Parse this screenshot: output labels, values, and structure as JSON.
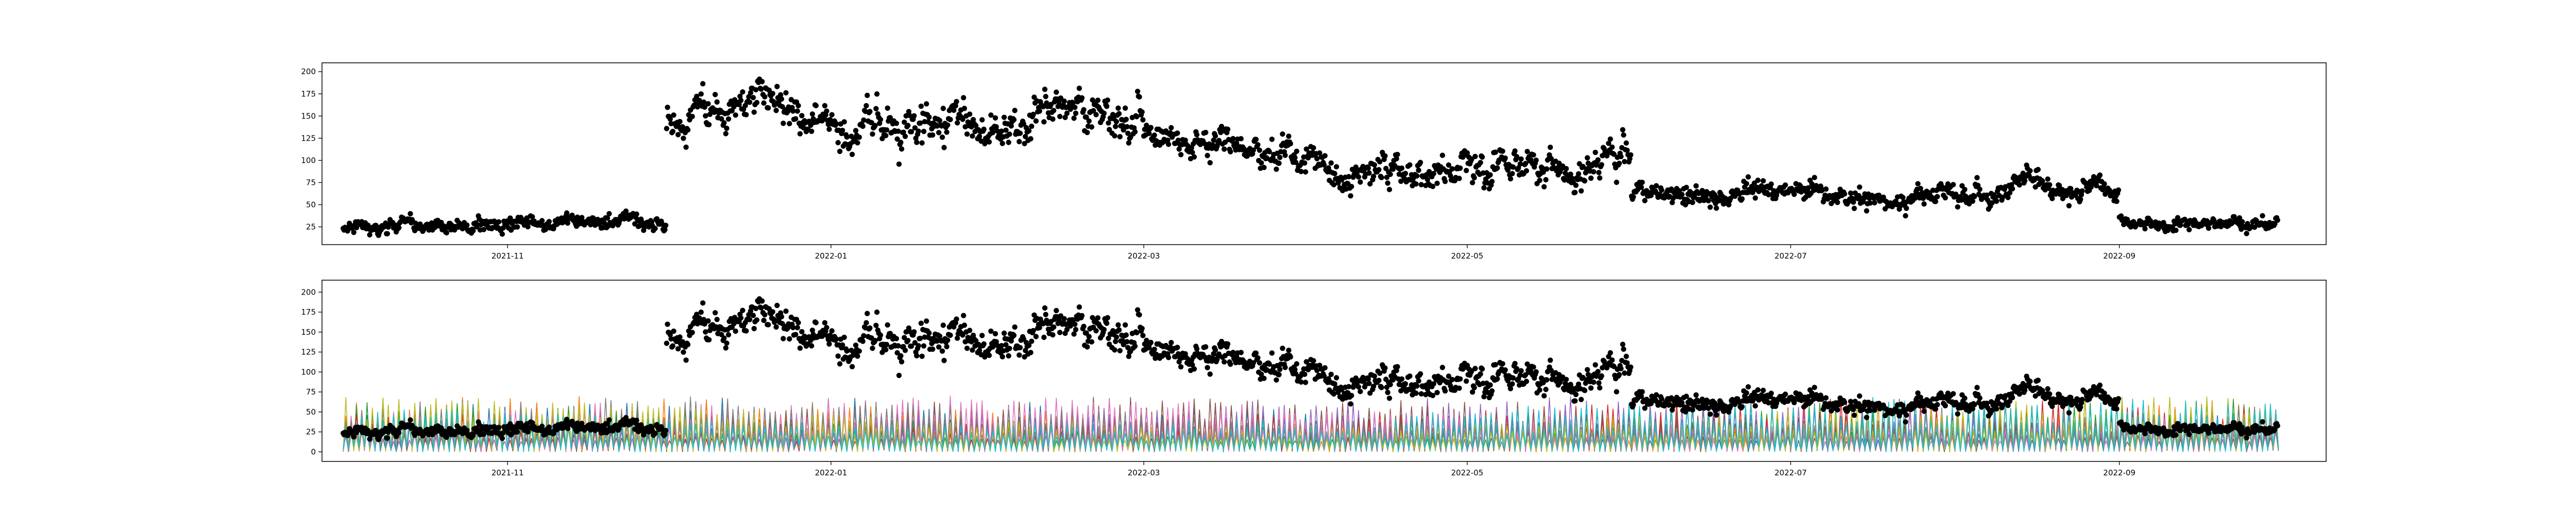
{
  "figure": {
    "background": "#ffffff",
    "marker_color": "#000000",
    "axes_color": "#000000"
  },
  "chart_data": [
    {
      "type": "scatter",
      "title": "",
      "xlabel": "",
      "ylabel": "",
      "xlim": [
        "2021-09-27",
        "2022-10-10"
      ],
      "ylim": [
        5,
        210
      ],
      "x_ticks": [
        "2021-11",
        "2022-01",
        "2022-03",
        "2022-05",
        "2022-07",
        "2022-09"
      ],
      "y_ticks": [
        25,
        50,
        75,
        100,
        125,
        150,
        175,
        200
      ],
      "grid": false,
      "series": [
        {
          "marker": "o",
          "color": "#000000",
          "segments": [
            {
              "start": "2021-10-01",
              "end": "2021-12-01",
              "trend": [
                [
                  0,
                  22
                ],
                [
                  0.5,
                  26
                ],
                [
                  1,
                  32
                ]
              ],
              "noise": 5
            },
            {
              "start": "2021-12-01",
              "end": "2022-03-01",
              "trend": [
                [
                  0,
                  135
                ],
                [
                  0.12,
                  150
                ],
                [
                  0.2,
                  185
                ],
                [
                  0.35,
                  135
                ],
                [
                  0.5,
                  130
                ],
                [
                  0.7,
                  150
                ],
                [
                  0.85,
                  165
                ],
                [
                  1,
                  135
                ]
              ],
              "noise": 14
            },
            {
              "start": "2022-03-01",
              "end": "2022-06-01",
              "trend": [
                [
                  0,
                  125
                ],
                [
                  0.3,
                  95
                ],
                [
                  0.55,
                  90
                ],
                [
                  0.8,
                  95
                ],
                [
                  1,
                  105
                ]
              ],
              "noise": 11
            },
            {
              "start": "2022-06-01",
              "end": "2022-09-01",
              "trend": [
                [
                  0,
                  62
                ],
                [
                  0.4,
                  60
                ],
                [
                  0.6,
                  55
                ],
                [
                  0.8,
                  70
                ],
                [
                  1,
                  60
                ]
              ],
              "noise": 7
            },
            {
              "start": "2022-09-01",
              "end": "2022-10-01",
              "trend": [
                [
                  0,
                  32
                ],
                [
                  0.5,
                  25
                ],
                [
                  1,
                  30
                ]
              ],
              "noise": 4
            }
          ]
        }
      ]
    },
    {
      "type": "line",
      "title": "",
      "xlabel": "",
      "ylabel": "",
      "xlim": [
        "2021-09-27",
        "2022-10-10"
      ],
      "ylim": [
        -12,
        215
      ],
      "x_ticks": [
        "2021-11",
        "2022-01",
        "2022-03",
        "2022-05",
        "2022-07",
        "2022-09"
      ],
      "y_ticks": [
        0,
        25,
        50,
        75,
        100,
        125,
        150,
        175,
        200
      ],
      "grid": false,
      "overlay_scatter_same_as_top": true,
      "line_series": {
        "count": 10,
        "x_range": [
          "2021-10-01",
          "2022-10-01"
        ],
        "value_range": [
          0,
          70
        ],
        "colors": [
          "#1f77b4",
          "#ff7f0e",
          "#2ca02c",
          "#d62728",
          "#9467bd",
          "#8c564b",
          "#e377c2",
          "#7f7f7f",
          "#bcbd22",
          "#17becf"
        ]
      }
    }
  ]
}
